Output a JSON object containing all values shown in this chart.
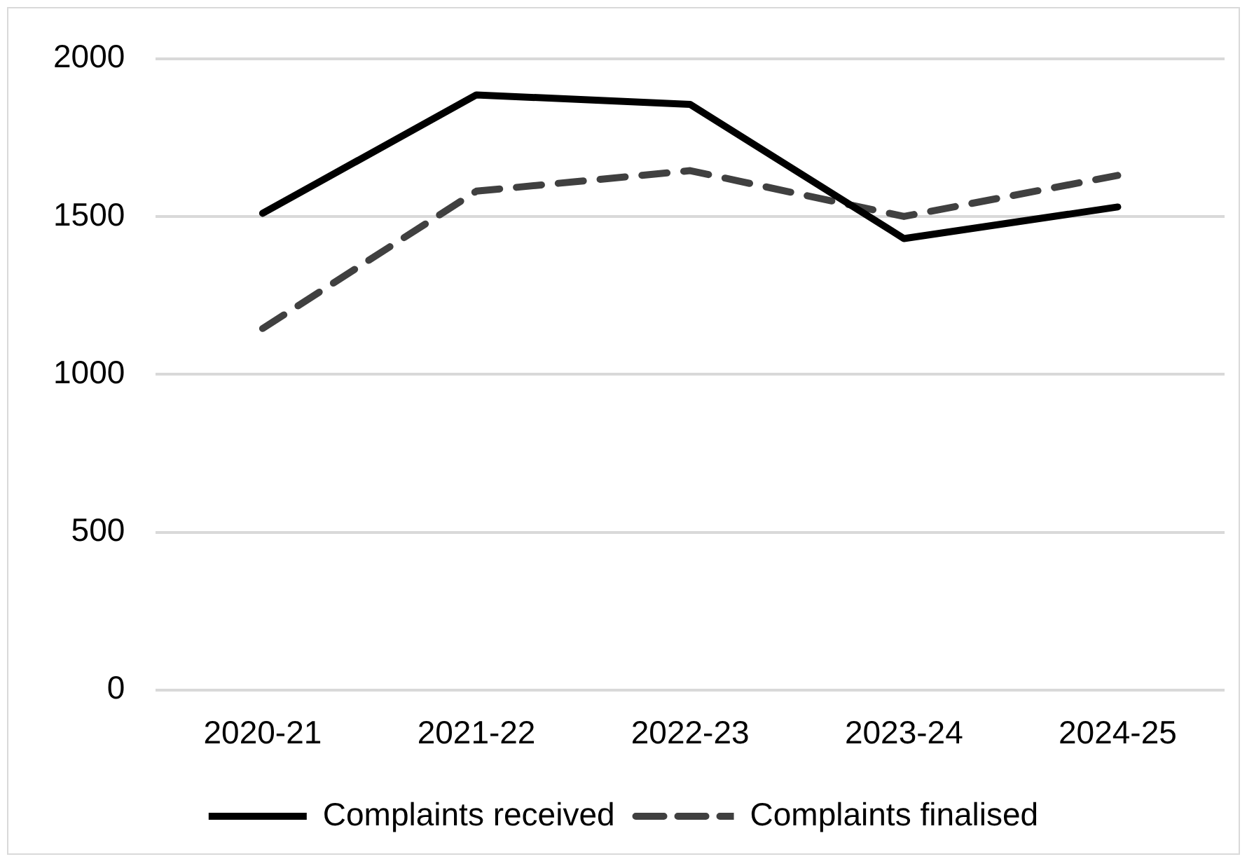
{
  "chart_data": {
    "type": "line",
    "categories": [
      "2020-21",
      "2021-22",
      "2022-23",
      "2023-24",
      "2024-25"
    ],
    "series": [
      {
        "name": "Complaints received",
        "color": "#000000",
        "values": [
          1510,
          1885,
          1855,
          1430,
          1530
        ],
        "line_style": "solid"
      },
      {
        "name": "Complaints finalised",
        "color": "#404040",
        "values": [
          1145,
          1580,
          1645,
          1500,
          1630
        ],
        "line_style": "dashed"
      }
    ],
    "ylim": [
      0,
      2000
    ],
    "yticks": [
      0,
      500,
      1000,
      1500,
      2000
    ],
    "grid": "y",
    "legend": "bottom",
    "marker": "none"
  }
}
